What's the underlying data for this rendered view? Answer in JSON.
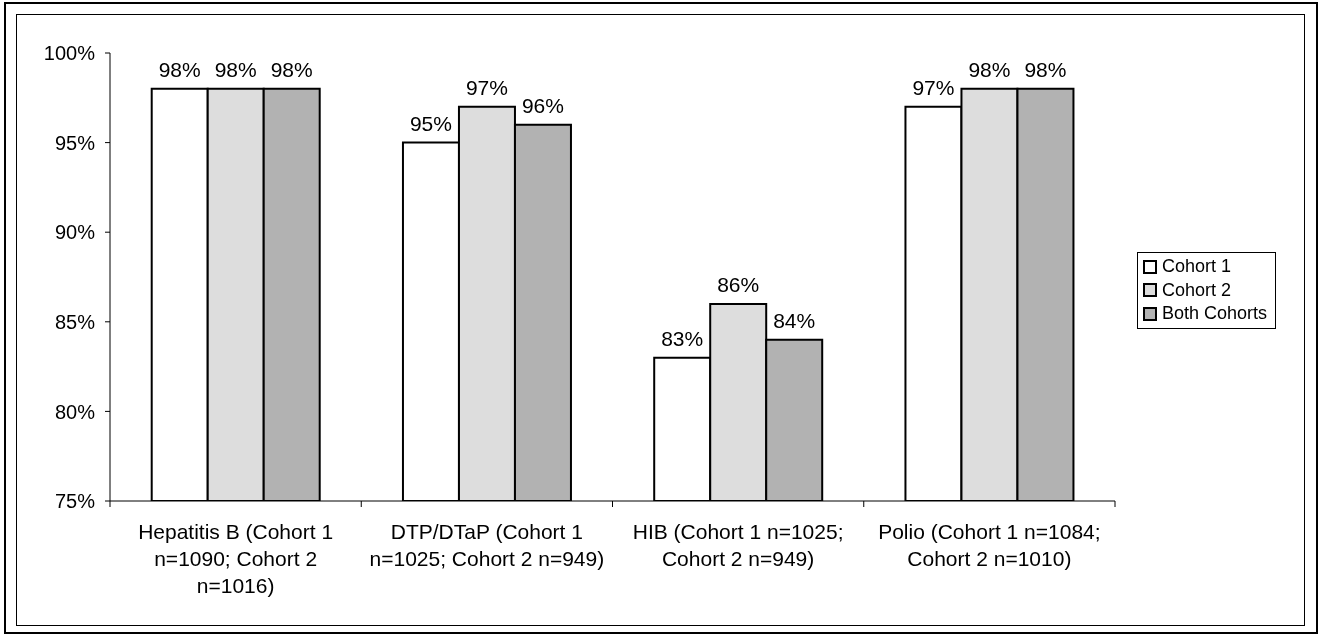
{
  "chart_data": {
    "type": "bar",
    "categories": [
      "Hepatitis B (Cohort 1 n=1090; Cohort 2 n=1016)",
      "DTP/DTaP (Cohort 1 n=1025; Cohort 2 n=949)",
      "HIB (Cohort 1 n=1025; Cohort 2 n=949)",
      "Polio (Cohort 1 n=1084; Cohort 2 n=1010)"
    ],
    "series": [
      {
        "name": "Cohort 1",
        "color": "#ffffff",
        "values": [
          98,
          95,
          83,
          97
        ],
        "value_labels": [
          "98%",
          "95%",
          "83%",
          "97%"
        ]
      },
      {
        "name": "Cohort 2",
        "color": "#dddddd",
        "values": [
          98,
          97,
          86,
          98
        ],
        "value_labels": [
          "98%",
          "97%",
          "86%",
          "98%"
        ]
      },
      {
        "name": "Both Cohorts",
        "color": "#b2b2b2",
        "values": [
          98,
          96,
          84,
          98
        ],
        "value_labels": [
          "98%",
          "96%",
          "84%",
          "98%"
        ]
      }
    ],
    "ylim": [
      75,
      100
    ],
    "yticks": [
      {
        "value": 75,
        "label": "75%"
      },
      {
        "value": 80,
        "label": "80%"
      },
      {
        "value": 85,
        "label": "85%"
      },
      {
        "value": 90,
        "label": "90%"
      },
      {
        "value": 95,
        "label": "95%"
      },
      {
        "value": 100,
        "label": "100%"
      }
    ],
    "legend": "right"
  }
}
